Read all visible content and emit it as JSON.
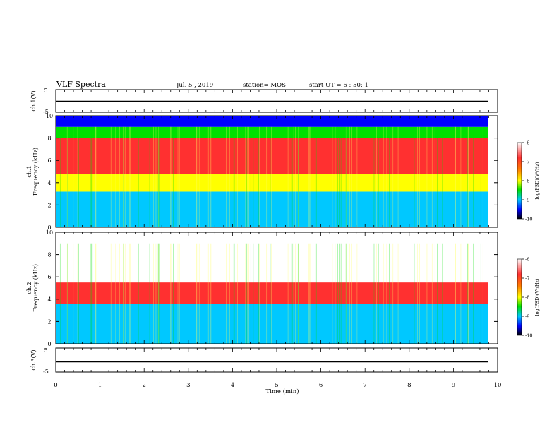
{
  "header": {
    "title": "VLF Spectra",
    "date": "Jul. 5 , 2019",
    "station": "station= MOS",
    "start": "start UT = 6 : 50: 1"
  },
  "chart_data": [
    {
      "type": "line",
      "panel": "ch.1 waveform",
      "ylabel": "ch.1(V)",
      "ylim": [
        -5,
        5
      ],
      "yticks": [
        "5",
        "-5"
      ],
      "series": [
        {
          "x": [
            0,
            9.82
          ],
          "values": [
            0,
            0
          ]
        }
      ]
    },
    {
      "type": "heatmap",
      "panel": "ch.1 spectrogram",
      "ylabel": "ch.1 Frequency (kHz)",
      "ylim": [
        0,
        10
      ],
      "yticks": [
        "0",
        "2",
        "4",
        "6",
        "8",
        "10"
      ],
      "colorbar": {
        "label": "log(PSD)(V²/Hz)",
        "range": [
          -10,
          -6
        ],
        "ticks": [
          "-6",
          "-7",
          "-8",
          "-9",
          "-10"
        ]
      },
      "bands": [
        {
          "from_khz": 0,
          "to_khz": 3.2,
          "level": -9.3
        },
        {
          "from_khz": 3.2,
          "to_khz": 4.8,
          "level": -8.2
        },
        {
          "from_khz": 4.8,
          "to_khz": 8.0,
          "level": -6.9
        },
        {
          "from_khz": 8.0,
          "to_khz": 9.0,
          "level": -8.5
        },
        {
          "from_khz": 9.0,
          "to_khz": 10.0,
          "level": -10
        }
      ]
    },
    {
      "type": "heatmap",
      "panel": "ch.2 spectrogram",
      "ylabel": "ch.2 Frequency (kHz)",
      "ylim": [
        0,
        10
      ],
      "yticks": [
        "0",
        "2",
        "4",
        "6",
        "8",
        "10"
      ],
      "colorbar": {
        "label": "log(PSD)(V²/Hz)",
        "range": [
          -10,
          -6
        ],
        "ticks": [
          "-6",
          "-7",
          "-8",
          "-9",
          "-10"
        ]
      },
      "bands": [
        {
          "from_khz": 0,
          "to_khz": 3.6,
          "level": -9.0
        },
        {
          "from_khz": 3.6,
          "to_khz": 5.5,
          "level": -7.0
        },
        {
          "from_khz": 5.5,
          "to_khz": 10.0,
          "level": -6.0
        }
      ]
    },
    {
      "type": "line",
      "panel": "ch.3 waveform",
      "ylabel": "ch.3(V)",
      "ylim": [
        -5,
        5
      ],
      "yticks": [
        "5",
        "-5"
      ],
      "series": [
        {
          "x": [
            0,
            9.82
          ],
          "values": [
            -1.2,
            -1.2
          ]
        }
      ]
    }
  ],
  "xaxis": {
    "label": "Time (min)",
    "ticks": [
      "0",
      "1",
      "2",
      "3",
      "4",
      "5",
      "6",
      "7",
      "8",
      "9",
      "10"
    ],
    "range": [
      0,
      10
    ]
  }
}
